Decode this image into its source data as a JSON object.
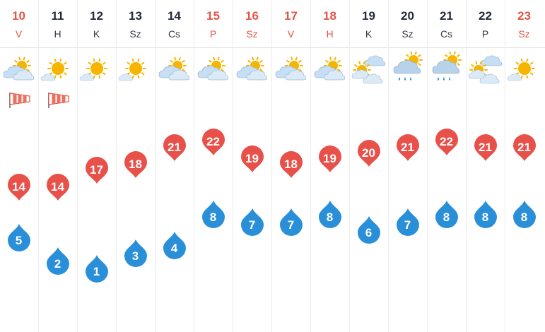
{
  "colors": {
    "weekend": "#e05546",
    "weekday": "#222b3a",
    "max_temp": "#e8504a",
    "min_temp": "#2a8fd9",
    "divider": "#ececec"
  },
  "days": [
    {
      "num": "10",
      "name": "V",
      "weekend": true,
      "icon": "sun-cloud-icon",
      "wind": true,
      "max": "14",
      "min": "5"
    },
    {
      "num": "11",
      "name": "H",
      "weekend": false,
      "icon": "sun-small-cloud-icon",
      "wind": true,
      "max": "14",
      "min": "2"
    },
    {
      "num": "12",
      "name": "K",
      "weekend": false,
      "icon": "sun-small-cloud-icon",
      "wind": false,
      "max": "17",
      "min": "1"
    },
    {
      "num": "13",
      "name": "Sz",
      "weekend": false,
      "icon": "sun-small-cloud-icon",
      "wind": false,
      "max": "18",
      "min": "3"
    },
    {
      "num": "14",
      "name": "Cs",
      "weekend": false,
      "icon": "sun-cloud-icon",
      "wind": false,
      "max": "21",
      "min": "4"
    },
    {
      "num": "15",
      "name": "P",
      "weekend": true,
      "icon": "sun-cloud-icon",
      "wind": false,
      "max": "22",
      "min": "8"
    },
    {
      "num": "16",
      "name": "Sz",
      "weekend": true,
      "icon": "sun-cloud-icon",
      "wind": false,
      "max": "19",
      "min": "7"
    },
    {
      "num": "17",
      "name": "V",
      "weekend": true,
      "icon": "sun-cloud-icon",
      "wind": false,
      "max": "18",
      "min": "7"
    },
    {
      "num": "18",
      "name": "H",
      "weekend": true,
      "icon": "sun-cloud-icon",
      "wind": false,
      "max": "19",
      "min": "8"
    },
    {
      "num": "19",
      "name": "K",
      "weekend": false,
      "icon": "cloud-sun-clouds-icon",
      "wind": false,
      "max": "20",
      "min": "6"
    },
    {
      "num": "20",
      "name": "Sz",
      "weekend": false,
      "icon": "sun-rain-cloud-icon",
      "wind": false,
      "max": "21",
      "min": "7"
    },
    {
      "num": "21",
      "name": "Cs",
      "weekend": false,
      "icon": "sun-rain-cloud-icon",
      "wind": false,
      "max": "22",
      "min": "8"
    },
    {
      "num": "22",
      "name": "P",
      "weekend": false,
      "icon": "cloud-sun-clouds-icon",
      "wind": false,
      "max": "21",
      "min": "8"
    },
    {
      "num": "23",
      "name": "Sz",
      "weekend": true,
      "icon": "sun-small-cloud-icon",
      "wind": false,
      "max": "21",
      "min": "8"
    }
  ]
}
